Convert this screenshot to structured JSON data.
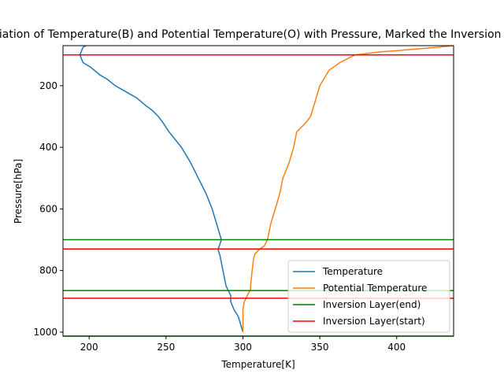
{
  "chart_data": {
    "type": "line",
    "title": "Variation of Temperature(B) and Potential Temperature(O) with Pressure, Marked the Inversion Layer",
    "xlabel": "Temperature[K]",
    "ylabel": "Pressure[hPa]",
    "xlim": [
      183,
      437
    ],
    "ylim": [
      1013,
      70
    ],
    "y_inverted": true,
    "xticks": [
      200,
      250,
      300,
      350,
      400
    ],
    "yticks": [
      200,
      400,
      600,
      800,
      1000
    ],
    "grid": false,
    "legend_position": "lower-right",
    "series": [
      {
        "name": "Temperature",
        "color": "#1f77b4",
        "points": [
          {
            "x": 300,
            "y": 1000
          },
          {
            "x": 297,
            "y": 950
          },
          {
            "x": 294,
            "y": 925
          },
          {
            "x": 292,
            "y": 900
          },
          {
            "x": 292,
            "y": 880
          },
          {
            "x": 289,
            "y": 850
          },
          {
            "x": 285,
            "y": 750
          },
          {
            "x": 284,
            "y": 735
          },
          {
            "x": 284,
            "y": 730
          },
          {
            "x": 286,
            "y": 700
          },
          {
            "x": 283,
            "y": 650
          },
          {
            "x": 280,
            "y": 600
          },
          {
            "x": 276,
            "y": 550
          },
          {
            "x": 271,
            "y": 500
          },
          {
            "x": 266,
            "y": 450
          },
          {
            "x": 260,
            "y": 400
          },
          {
            "x": 252,
            "y": 350
          },
          {
            "x": 248,
            "y": 320
          },
          {
            "x": 245,
            "y": 300
          },
          {
            "x": 241,
            "y": 280
          },
          {
            "x": 237,
            "y": 265
          },
          {
            "x": 231,
            "y": 240
          },
          {
            "x": 224,
            "y": 220
          },
          {
            "x": 217,
            "y": 200
          },
          {
            "x": 212,
            "y": 180
          },
          {
            "x": 207,
            "y": 165
          },
          {
            "x": 201,
            "y": 140
          },
          {
            "x": 196,
            "y": 125
          },
          {
            "x": 194,
            "y": 100
          },
          {
            "x": 196,
            "y": 75
          },
          {
            "x": 198,
            "y": 70
          }
        ]
      },
      {
        "name": "Potential Temperature",
        "color": "#ff7f0e",
        "points": [
          {
            "x": 300,
            "y": 1000
          },
          {
            "x": 300,
            "y": 950
          },
          {
            "x": 300,
            "y": 925
          },
          {
            "x": 301,
            "y": 900
          },
          {
            "x": 303,
            "y": 880
          },
          {
            "x": 305,
            "y": 860
          },
          {
            "x": 305,
            "y": 850
          },
          {
            "x": 306,
            "y": 800
          },
          {
            "x": 307,
            "y": 760
          },
          {
            "x": 308,
            "y": 745
          },
          {
            "x": 310,
            "y": 735
          },
          {
            "x": 311,
            "y": 730
          },
          {
            "x": 314,
            "y": 720
          },
          {
            "x": 316,
            "y": 700
          },
          {
            "x": 318,
            "y": 650
          },
          {
            "x": 321,
            "y": 600
          },
          {
            "x": 324,
            "y": 550
          },
          {
            "x": 326,
            "y": 500
          },
          {
            "x": 330,
            "y": 450
          },
          {
            "x": 333,
            "y": 400
          },
          {
            "x": 335,
            "y": 350
          },
          {
            "x": 341,
            "y": 320
          },
          {
            "x": 344,
            "y": 300
          },
          {
            "x": 347,
            "y": 250
          },
          {
            "x": 350,
            "y": 200
          },
          {
            "x": 353,
            "y": 175
          },
          {
            "x": 356,
            "y": 150
          },
          {
            "x": 363,
            "y": 125
          },
          {
            "x": 373,
            "y": 100
          },
          {
            "x": 390,
            "y": 90
          },
          {
            "x": 403,
            "y": 85
          },
          {
            "x": 425,
            "y": 76
          },
          {
            "x": 437,
            "y": 70
          }
        ]
      }
    ],
    "hlines": [
      {
        "name": "Inversion Layer(end)",
        "color": "#008000",
        "y_values": [
          700,
          865,
          1013
        ]
      },
      {
        "name": "Inversion Layer(start)",
        "color": "#ff0000",
        "y_values": [
          100,
          730,
          890
        ]
      }
    ],
    "legend": [
      {
        "label": "Temperature",
        "color": "#1f77b4"
      },
      {
        "label": "Potential Temperature",
        "color": "#ff7f0e"
      },
      {
        "label": "Inversion Layer(end)",
        "color": "#008000"
      },
      {
        "label": "Inversion Layer(start)",
        "color": "#ff0000"
      }
    ]
  }
}
